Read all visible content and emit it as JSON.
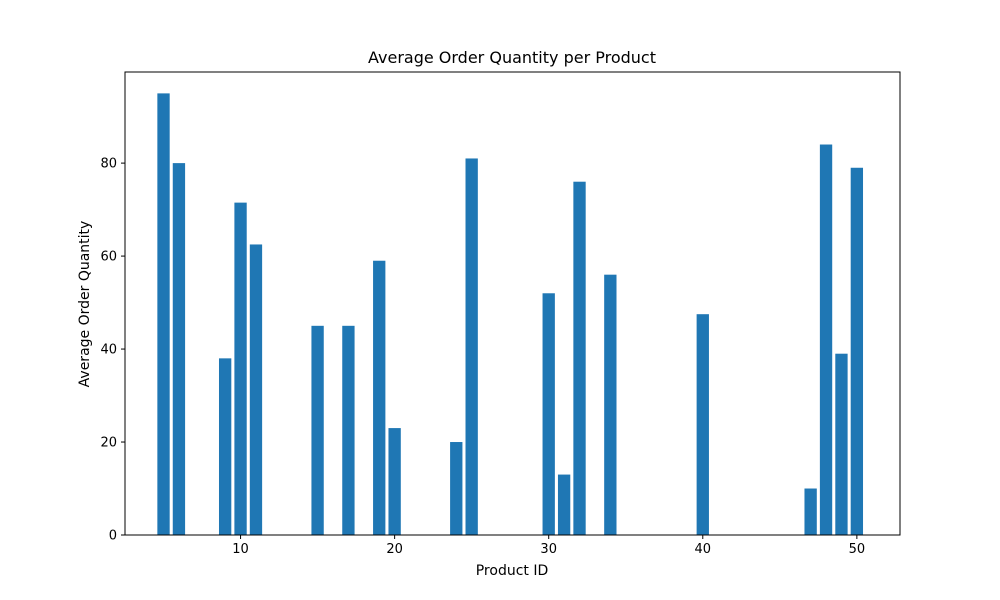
{
  "chart_data": {
    "type": "bar",
    "title": "Average Order Quantity per Product",
    "xlabel": "Product ID",
    "ylabel": "Average Order Quantity",
    "x": [
      5,
      6,
      9,
      10,
      11,
      15,
      17,
      19,
      20,
      24,
      25,
      30,
      31,
      32,
      34,
      40,
      47,
      48,
      49,
      50
    ],
    "values": [
      95,
      80,
      38,
      71.5,
      62.5,
      45,
      45,
      59,
      23,
      20,
      81,
      52,
      13,
      76,
      56,
      47.5,
      10,
      84,
      39,
      79
    ],
    "xlim": [
      2.5,
      52.8
    ],
    "ylim": [
      0,
      99.6
    ],
    "xticks": [
      10,
      20,
      30,
      40,
      50
    ],
    "yticks": [
      0,
      20,
      40,
      60,
      80
    ],
    "grid": false,
    "bar_color": "#1f77b4"
  }
}
